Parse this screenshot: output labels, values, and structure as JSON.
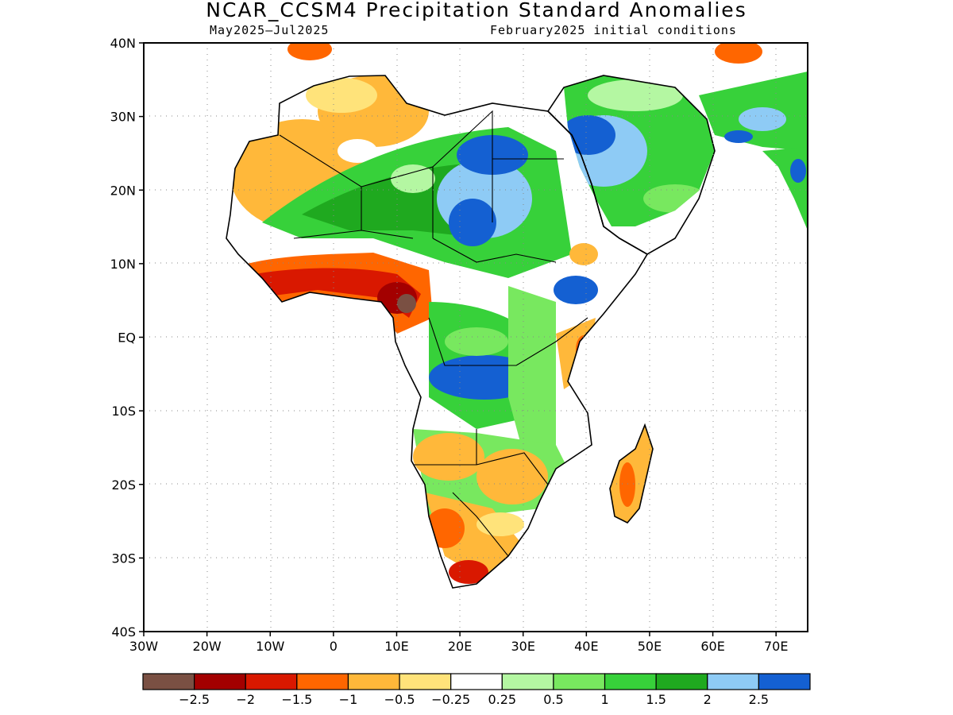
{
  "title": "NCAR_CCSM4 Precipitation Standard Anomalies",
  "subtitle_left": "May2025–Jul2025",
  "subtitle_right": "February2025 initial conditions",
  "lat_labels": [
    "40N",
    "30N",
    "20N",
    "10N",
    "EQ",
    "10S",
    "20S",
    "30S",
    "40S"
  ],
  "lon_labels": [
    "30W",
    "20W",
    "10W",
    "0",
    "10E",
    "20E",
    "30E",
    "40E",
    "50E",
    "60E",
    "70E"
  ],
  "map_extent": {
    "lon": [
      -30,
      75
    ],
    "lat": [
      -40,
      40
    ]
  },
  "gridlines": "dotted",
  "colorbar": {
    "colors": [
      "#7a5043",
      "#a30000",
      "#d91800",
      "#ff6600",
      "#ffb83a",
      "#ffe37a",
      "#ffffff",
      "#b4f7a2",
      "#78e85f",
      "#37d13a",
      "#1fa91f",
      "#8ecbf5",
      "#1460d2"
    ],
    "labels": [
      "−2.5",
      "−2",
      "−1.5",
      "−1",
      "−0.5",
      "−0.25",
      "0.25",
      "0.5",
      "1",
      "1.5",
      "2",
      "2.5"
    ]
  }
}
